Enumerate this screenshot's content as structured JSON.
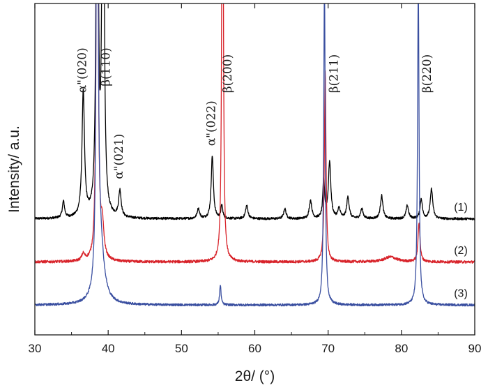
{
  "chart_data": {
    "type": "line",
    "title": "",
    "xlabel": "2θ/ (°)",
    "ylabel": "Intensity/ a.u.",
    "xlim": [
      30,
      90
    ],
    "ylim": [
      0,
      100
    ],
    "x_ticks": [
      30,
      40,
      50,
      60,
      70,
      80,
      90
    ],
    "y_ticks_shown": false,
    "grid": false,
    "legend": "inline labels at right end of curves",
    "series": [
      {
        "name": "(1)",
        "color": "#000000",
        "baseline": 35,
        "noise": 0.35,
        "peaks": [
          {
            "x": 33.9,
            "h": 5,
            "w": 0.18
          },
          {
            "x": 36.6,
            "h": 38,
            "w": 0.2
          },
          {
            "x": 38.5,
            "h": 200,
            "w": 0.13
          },
          {
            "x": 39.3,
            "h": 200,
            "w": 0.13
          },
          {
            "x": 41.6,
            "h": 8,
            "w": 0.2
          },
          {
            "x": 52.3,
            "h": 3,
            "w": 0.2
          },
          {
            "x": 54.2,
            "h": 19,
            "w": 0.18
          },
          {
            "x": 55.5,
            "h": 4,
            "w": 0.15
          },
          {
            "x": 58.9,
            "h": 4,
            "w": 0.2
          },
          {
            "x": 64.1,
            "h": 3,
            "w": 0.2
          },
          {
            "x": 67.6,
            "h": 5.5,
            "w": 0.2
          },
          {
            "x": 69.4,
            "h": 12,
            "w": 0.14
          },
          {
            "x": 70.2,
            "h": 17,
            "w": 0.2
          },
          {
            "x": 71.5,
            "h": 3,
            "w": 0.2
          },
          {
            "x": 72.7,
            "h": 6.5,
            "w": 0.2
          },
          {
            "x": 74.6,
            "h": 3,
            "w": 0.2
          },
          {
            "x": 77.3,
            "h": 7,
            "w": 0.2
          },
          {
            "x": 80.8,
            "h": 4,
            "w": 0.2
          },
          {
            "x": 82.7,
            "h": 6,
            "w": 0.18
          },
          {
            "x": 84.1,
            "h": 9,
            "w": 0.2
          }
        ]
      },
      {
        "name": "(2)",
        "color": "#d8232a",
        "baseline": 22,
        "noise": 0.4,
        "peaks": [
          {
            "x": 36.6,
            "h": 2,
            "w": 0.25
          },
          {
            "x": 38.5,
            "h": 200,
            "w": 0.12
          },
          {
            "x": 39.2,
            "h": 10,
            "w": 0.25
          },
          {
            "x": 55.6,
            "h": 200,
            "w": 0.1
          },
          {
            "x": 69.6,
            "h": 58,
            "w": 0.13
          },
          {
            "x": 78.5,
            "h": 1.5,
            "w": 1.0
          },
          {
            "x": 82.4,
            "h": 12,
            "w": 0.16
          }
        ]
      },
      {
        "name": "(3)",
        "color": "#3a4fa0",
        "baseline": 9,
        "noise": 0.35,
        "peaks": [
          {
            "x": 38.5,
            "h": 200,
            "w": 0.12
          },
          {
            "x": 38.9,
            "h": 18,
            "w": 0.6
          },
          {
            "x": 55.3,
            "h": 6,
            "w": 0.12
          },
          {
            "x": 69.5,
            "h": 98,
            "w": 0.12
          },
          {
            "x": 82.3,
            "h": 97,
            "w": 0.12
          }
        ]
      }
    ],
    "annotations": [
      {
        "text": "α\"(020)",
        "x": 37.0,
        "y": 73
      },
      {
        "text": "β(110)",
        "x": 40.2,
        "y": 75
      },
      {
        "text": "α\"(021)",
        "x": 42.0,
        "y": 47
      },
      {
        "text": "α\"(022)",
        "x": 54.6,
        "y": 57
      },
      {
        "text": "β(200)",
        "x": 56.8,
        "y": 73
      },
      {
        "text": "β(211)",
        "x": 71.3,
        "y": 73
      },
      {
        "text": "β(220)",
        "x": 84.0,
        "y": 73
      }
    ]
  }
}
